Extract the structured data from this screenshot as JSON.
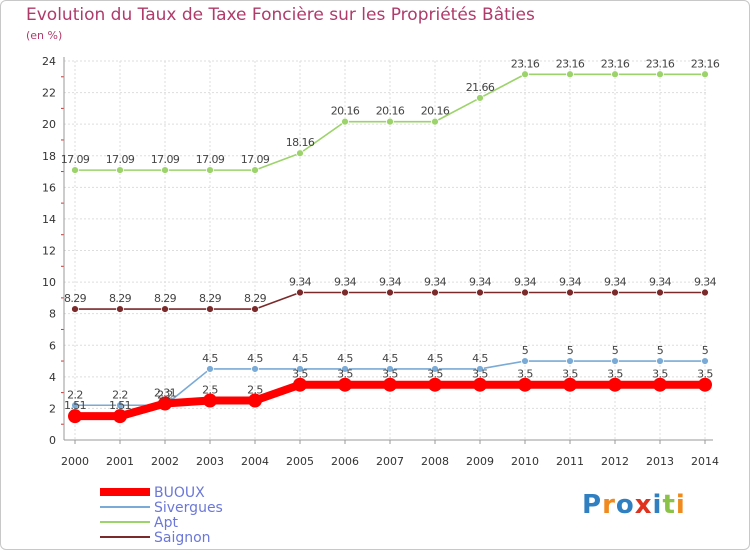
{
  "header": {
    "title": "Evolution du Taux de Taxe Foncière sur les Propriétés Bâties",
    "unit": "(en %)"
  },
  "logo": {
    "text": "Proxiti",
    "letters": [
      "P",
      "r",
      "o",
      "x",
      "i",
      "t",
      "i"
    ],
    "colors": [
      "#2f7fc1",
      "#f08a1c",
      "#2f7fc1",
      "#e0301e",
      "#2f7fc1",
      "#8bc34a",
      "#f08a1c"
    ]
  },
  "chart_data": {
    "type": "line",
    "title": "Evolution du Taux de Taxe Foncière sur les Propriétés Bâties",
    "ylabel": "(en %)",
    "xlabel": "",
    "ylim": [
      0,
      24
    ],
    "yticks": [
      0,
      2,
      4,
      6,
      8,
      10,
      12,
      14,
      16,
      18,
      20,
      22,
      24
    ],
    "grid": true,
    "legend": "bottom-left",
    "x": [
      "2000",
      "2001",
      "2002",
      "2003",
      "2004",
      "2005",
      "2006",
      "2007",
      "2008",
      "2009",
      "2010",
      "2011",
      "2012",
      "2013",
      "2014"
    ],
    "series": [
      {
        "name": "BUOUX",
        "color": "#ff0000",
        "values": [
          1.51,
          1.51,
          2.31,
          2.5,
          2.5,
          3.5,
          3.5,
          3.5,
          3.5,
          3.5,
          3.5,
          3.5,
          3.5,
          3.5,
          3.5
        ],
        "labels": [
          "1.51",
          "1.51",
          "2.31",
          "2.5",
          "2.5",
          "3.5",
          "3.5",
          "3.5",
          "3.5",
          "3.5",
          "3.5",
          "3.5",
          "3.5",
          "3.5",
          "3.5"
        ]
      },
      {
        "name": "Sivergues",
        "color": "#7aaad6",
        "values": [
          2.2,
          2.2,
          2.2,
          4.5,
          4.5,
          4.5,
          4.5,
          4.5,
          4.5,
          4.5,
          5,
          5,
          5,
          5,
          5
        ],
        "labels": [
          "2.2",
          "2.2",
          "2.2",
          "4.5",
          "4.5",
          "4.5",
          "4.5",
          "4.5",
          "4.5",
          "4.5",
          "5",
          "5",
          "5",
          "5",
          "5"
        ]
      },
      {
        "name": "Apt",
        "color": "#9cd36a",
        "values": [
          17.09,
          17.09,
          17.09,
          17.09,
          17.09,
          18.16,
          20.16,
          20.16,
          20.16,
          21.66,
          23.16,
          23.16,
          23.16,
          23.16,
          23.16
        ],
        "labels": [
          "17.09",
          "17.09",
          "17.09",
          "17.09",
          "17.09",
          "18.16",
          "20.16",
          "20.16",
          "20.16",
          "21.66",
          "23.16",
          "23.16",
          "23.16",
          "23.16",
          "23.16"
        ]
      },
      {
        "name": "Saignon",
        "color": "#7a2a2a",
        "values": [
          8.29,
          8.29,
          8.29,
          8.29,
          8.29,
          9.34,
          9.34,
          9.34,
          9.34,
          9.34,
          9.34,
          9.34,
          9.34,
          9.34,
          9.34
        ],
        "labels": [
          "8.29",
          "8.29",
          "8.29",
          "8.29",
          "8.29",
          "9.34",
          "9.34",
          "9.34",
          "9.34",
          "9.34",
          "9.34",
          "9.34",
          "9.34",
          "9.34",
          "9.34"
        ]
      }
    ]
  }
}
